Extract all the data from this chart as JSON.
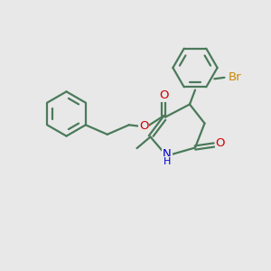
{
  "background_color": "#e8e8e8",
  "bond_color": "#4a7a5a",
  "o_color": "#cc0000",
  "n_color": "#0000cc",
  "br_color": "#cc8800",
  "line_width": 1.6,
  "figsize": [
    3.0,
    3.0
  ],
  "dpi": 100,
  "xlim": [
    0,
    10
  ],
  "ylim": [
    0,
    10
  ]
}
